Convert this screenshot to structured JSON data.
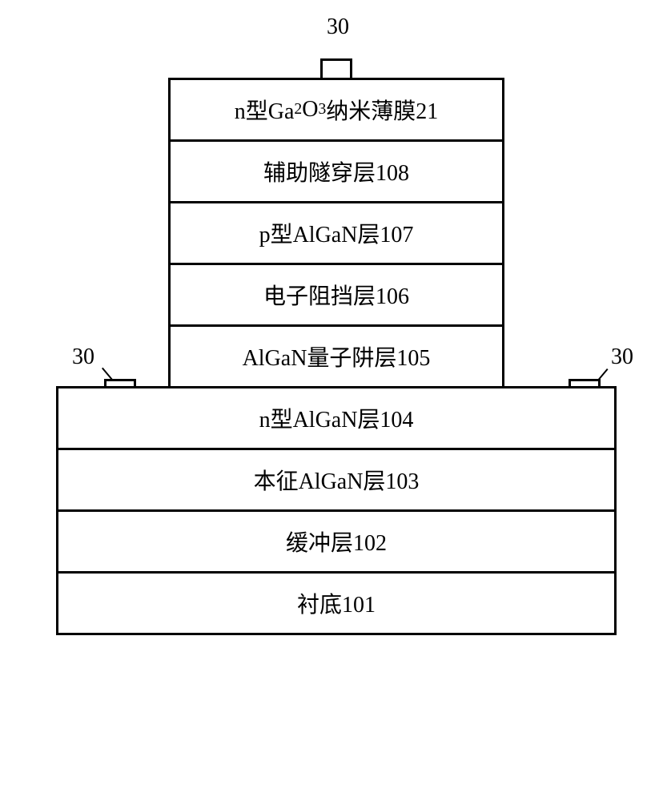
{
  "diagram": {
    "type": "layer-stack",
    "background_color": "#ffffff",
    "border_color": "#000000",
    "border_width": 3,
    "font_size": 28,
    "font_family": "SimSun",
    "text_color": "#000000",
    "narrow_layers": [
      {
        "label_html": "n型Ga<sub>2</sub>O<sub>3</sub>纳米薄膜21",
        "label_plain": "n型Ga2O3纳米薄膜21"
      },
      {
        "label_html": "辅助隧穿层108",
        "label_plain": "辅助隧穿层108"
      },
      {
        "label_html": "p型AlGaN层107",
        "label_plain": "p型AlGaN层107"
      },
      {
        "label_html": "电子阻挡层106",
        "label_plain": "电子阻挡层106"
      },
      {
        "label_html": "AlGaN量子阱层105",
        "label_plain": "AlGaN量子阱层105"
      }
    ],
    "wide_layers": [
      {
        "label_html": "n型AlGaN层104",
        "label_plain": "n型AlGaN层104"
      },
      {
        "label_html": "本征AlGaN层103",
        "label_plain": "本征AlGaN层103"
      },
      {
        "label_html": "缓冲层102",
        "label_plain": "缓冲层102"
      },
      {
        "label_html": "衬底101",
        "label_plain": "衬底101"
      }
    ],
    "narrow_width": 420,
    "wide_width": 700,
    "layer_height": 80,
    "electrodes": {
      "label": "30",
      "width": 40,
      "height": 30,
      "positions": [
        "top",
        "left",
        "right"
      ]
    }
  }
}
